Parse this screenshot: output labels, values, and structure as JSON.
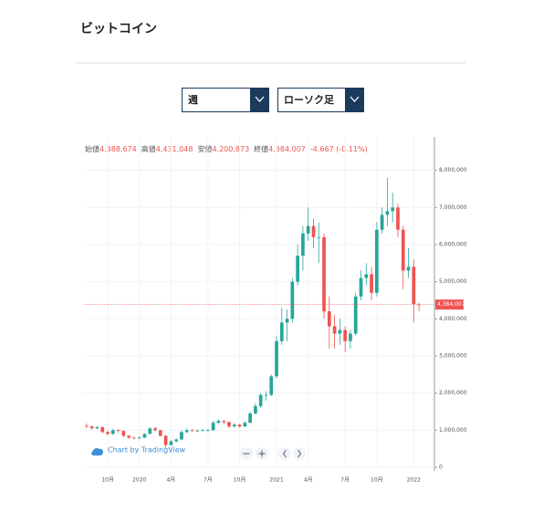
{
  "header": {
    "title": "ビットコイン"
  },
  "controls": {
    "interval": "週",
    "chart_style": "ローソク足"
  },
  "chart_data": {
    "type": "candlestick",
    "status_line": [
      "始値",
      "4,388,674",
      "高値",
      "4,431,048",
      "安値",
      "4,200,873",
      "終値",
      "4,384,007",
      "-4.667 (-0.11%)"
    ],
    "attribution": "Chart by TradingView",
    "categories": [
      null,
      null,
      null,
      null,
      "10月",
      null,
      null,
      null,
      null,
      null,
      "2020",
      null,
      null,
      null,
      null,
      null,
      "4月",
      null,
      null,
      null,
      null,
      null,
      null,
      "7月",
      null,
      null,
      null,
      null,
      null,
      "10月",
      null,
      null,
      null,
      null,
      null,
      null,
      "2021",
      null,
      null,
      null,
      null,
      null,
      "4月",
      null,
      null,
      null,
      null,
      null,
      null,
      "7月",
      null,
      null,
      null,
      null,
      null,
      "10月",
      null,
      null,
      null,
      null,
      null,
      null,
      "2022",
      null
    ],
    "open": [
      1120000,
      1100000,
      1050000,
      1080000,
      950000,
      900000,
      1000000,
      980000,
      850000,
      800000,
      780000,
      800000,
      900000,
      1050000,
      1000000,
      850000,
      600000,
      700000,
      750000,
      950000,
      1000000,
      980000,
      990000,
      1000000,
      1000000,
      1200000,
      1250000,
      1220000,
      1100000,
      1150000,
      1100000,
      1200000,
      1450000,
      1650000,
      1950000,
      1950000,
      2450000,
      3400000,
      3900000,
      4000000,
      5000000,
      5700000,
      6300000,
      6500000,
      6200000,
      6200000,
      4200000,
      3800000,
      3600000,
      3700000,
      3400000,
      3600000,
      4600000,
      5100000,
      5200000,
      4700000,
      6400000,
      6800000,
      6900000,
      7000000,
      6400000,
      5300000,
      5400000,
      4388674
    ],
    "high": [
      1180000,
      1130000,
      1120000,
      1100000,
      980000,
      1040000,
      1030000,
      990000,
      870000,
      820000,
      840000,
      920000,
      1080000,
      1090000,
      1010000,
      870000,
      740000,
      780000,
      1000000,
      1050000,
      1030000,
      1020000,
      1040000,
      1030000,
      1250000,
      1300000,
      1280000,
      1230000,
      1190000,
      1170000,
      1240000,
      1500000,
      1720000,
      2000000,
      2050000,
      2500000,
      3550000,
      4300000,
      4250000,
      5100000,
      6000000,
      6500000,
      7000000,
      6700000,
      6600000,
      6300000,
      4600000,
      4100000,
      4000000,
      3800000,
      3700000,
      4700000,
      5300000,
      5500000,
      5400000,
      6600000,
      7000000,
      7800000,
      7400000,
      7100000,
      6500000,
      5900000,
      5600000,
      4431048
    ],
    "low": [
      1050000,
      1020000,
      1030000,
      920000,
      860000,
      880000,
      940000,
      820000,
      760000,
      750000,
      760000,
      790000,
      890000,
      970000,
      820000,
      520000,
      580000,
      670000,
      740000,
      920000,
      950000,
      950000,
      970000,
      970000,
      990000,
      1180000,
      1150000,
      1060000,
      1080000,
      1070000,
      1090000,
      1190000,
      1420000,
      1600000,
      1800000,
      1920000,
      2400000,
      3300000,
      3400000,
      3900000,
      4900000,
      5300000,
      6100000,
      5900000,
      5500000,
      4000000,
      3200000,
      3200000,
      3300000,
      3100000,
      3200000,
      3550000,
      4500000,
      4900000,
      4500000,
      4600000,
      6300000,
      6500000,
      6600000,
      6200000,
      4800000,
      5100000,
      3900000,
      4200873
    ],
    "close": [
      1100000,
      1050000,
      1080000,
      950000,
      900000,
      1000000,
      980000,
      850000,
      800000,
      780000,
      800000,
      900000,
      1050000,
      1000000,
      850000,
      600000,
      700000,
      750000,
      950000,
      1000000,
      980000,
      990000,
      1000000,
      1000000,
      1200000,
      1250000,
      1220000,
      1100000,
      1150000,
      1100000,
      1200000,
      1450000,
      1650000,
      1950000,
      1950000,
      2450000,
      3400000,
      3900000,
      4000000,
      5000000,
      5700000,
      6300000,
      6500000,
      6200000,
      6200000,
      4200000,
      3800000,
      3600000,
      3700000,
      3400000,
      3600000,
      4600000,
      5100000,
      5200000,
      4700000,
      6400000,
      6800000,
      6900000,
      7000000,
      6400000,
      5300000,
      5400000,
      4400000,
      4384007
    ],
    "up_color": "#26a69a",
    "down_color": "#ef5350",
    "last_price": {
      "value": 4384007,
      "label": "4,384,007"
    },
    "ylim": [
      0,
      8900000
    ],
    "yticks": [
      0,
      {
        "value": 1000000,
        "label": "1,000,000"
      },
      {
        "value": 2000000,
        "label": "2,000,000"
      },
      {
        "value": 3000000,
        "label": "3,000,000"
      },
      {
        "value": 4000000,
        "label": "4,000,000"
      },
      {
        "value": 5000000,
        "label": "5,000,000"
      },
      {
        "value": 6000000,
        "label": "6,000,000"
      },
      {
        "value": 7000000,
        "label": "7,000,000"
      },
      {
        "value": 8000000,
        "label": "8,000,000"
      }
    ],
    "grid": true
  }
}
